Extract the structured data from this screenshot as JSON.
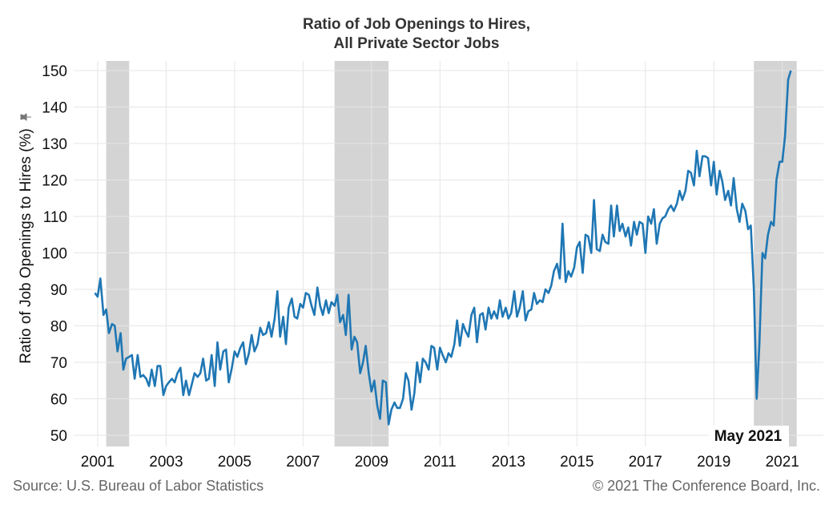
{
  "chart_data": {
    "type": "line",
    "title": "Ratio of Job Openings to Hires,",
    "subtitle": "All Private Sector Jobs",
    "ylabel": "Ratio of Job Openings to Hires (%)",
    "xlabel": "",
    "ylim": [
      50,
      150
    ],
    "yticks": [
      50,
      60,
      70,
      80,
      90,
      100,
      110,
      120,
      130,
      140,
      150
    ],
    "xlim": [
      2000.3,
      2022.2
    ],
    "xticks": [
      2001,
      2003,
      2005,
      2007,
      2009,
      2011,
      2013,
      2015,
      2017,
      2019,
      2021
    ],
    "grid": true,
    "line_color": "#1f77b4",
    "recessions": [
      [
        2001.25,
        2001.92
      ],
      [
        2007.92,
        2009.5
      ],
      [
        2020.17,
        2021.42
      ]
    ],
    "recession_color": "#d4d4d4",
    "annotation": "May 2021",
    "source": "Source: U.S. Bureau of Labor Statistics",
    "copyright": "© 2021 The Conference Board, Inc.",
    "series": [
      {
        "name": "",
        "points": [
          [
            2000.92,
            89
          ],
          [
            2001.0,
            88
          ],
          [
            2001.08,
            93
          ],
          [
            2001.17,
            83
          ],
          [
            2001.25,
            84.5
          ],
          [
            2001.33,
            78
          ],
          [
            2001.42,
            80.5
          ],
          [
            2001.5,
            80
          ],
          [
            2001.58,
            73
          ],
          [
            2001.67,
            78
          ],
          [
            2001.75,
            68
          ],
          [
            2001.83,
            71
          ],
          [
            2001.92,
            71.5
          ],
          [
            2002.0,
            72
          ],
          [
            2002.08,
            65.5
          ],
          [
            2002.17,
            72
          ],
          [
            2002.25,
            66
          ],
          [
            2002.33,
            66.5
          ],
          [
            2002.42,
            65.5
          ],
          [
            2002.5,
            63.5
          ],
          [
            2002.58,
            68
          ],
          [
            2002.67,
            63.5
          ],
          [
            2002.75,
            69
          ],
          [
            2002.83,
            69
          ],
          [
            2002.92,
            61
          ],
          [
            2003.0,
            63.5
          ],
          [
            2003.08,
            64.5
          ],
          [
            2003.17,
            65.5
          ],
          [
            2003.25,
            64.5
          ],
          [
            2003.33,
            67
          ],
          [
            2003.42,
            68.5
          ],
          [
            2003.5,
            61
          ],
          [
            2003.58,
            65
          ],
          [
            2003.67,
            61
          ],
          [
            2003.75,
            64
          ],
          [
            2003.83,
            67
          ],
          [
            2003.92,
            66
          ],
          [
            2004.0,
            67
          ],
          [
            2004.08,
            71
          ],
          [
            2004.17,
            65
          ],
          [
            2004.25,
            65.5
          ],
          [
            2004.33,
            72
          ],
          [
            2004.42,
            63.5
          ],
          [
            2004.5,
            75.5
          ],
          [
            2004.58,
            68
          ],
          [
            2004.67,
            73
          ],
          [
            2004.75,
            73.5
          ],
          [
            2004.83,
            64.5
          ],
          [
            2004.92,
            68.5
          ],
          [
            2005.0,
            73
          ],
          [
            2005.08,
            71.5
          ],
          [
            2005.17,
            74
          ],
          [
            2005.25,
            75.5
          ],
          [
            2005.33,
            69.5
          ],
          [
            2005.42,
            72.5
          ],
          [
            2005.5,
            77.5
          ],
          [
            2005.58,
            73
          ],
          [
            2005.67,
            75
          ],
          [
            2005.75,
            79.5
          ],
          [
            2005.83,
            77.5
          ],
          [
            2005.92,
            78
          ],
          [
            2006.0,
            81
          ],
          [
            2006.08,
            77
          ],
          [
            2006.17,
            82
          ],
          [
            2006.25,
            89.5
          ],
          [
            2006.33,
            77
          ],
          [
            2006.42,
            82.5
          ],
          [
            2006.5,
            75
          ],
          [
            2006.58,
            85
          ],
          [
            2006.67,
            87.5
          ],
          [
            2006.75,
            82.5
          ],
          [
            2006.83,
            82
          ],
          [
            2006.92,
            86
          ],
          [
            2007.0,
            85
          ],
          [
            2007.08,
            89
          ],
          [
            2007.17,
            88.5
          ],
          [
            2007.25,
            85.5
          ],
          [
            2007.33,
            83
          ],
          [
            2007.42,
            90.5
          ],
          [
            2007.5,
            85.5
          ],
          [
            2007.58,
            83
          ],
          [
            2007.67,
            87
          ],
          [
            2007.75,
            83.5
          ],
          [
            2007.83,
            86.5
          ],
          [
            2007.92,
            85.5
          ],
          [
            2008.0,
            88.5
          ],
          [
            2008.08,
            81
          ],
          [
            2008.17,
            83
          ],
          [
            2008.25,
            77.5
          ],
          [
            2008.33,
            88.5
          ],
          [
            2008.42,
            73.5
          ],
          [
            2008.5,
            77
          ],
          [
            2008.58,
            75.5
          ],
          [
            2008.67,
            67
          ],
          [
            2008.75,
            70
          ],
          [
            2008.83,
            74.5
          ],
          [
            2008.92,
            67
          ],
          [
            2009.0,
            62
          ],
          [
            2009.08,
            65
          ],
          [
            2009.17,
            58
          ],
          [
            2009.25,
            54.5
          ],
          [
            2009.33,
            65
          ],
          [
            2009.42,
            64.5
          ],
          [
            2009.5,
            53
          ],
          [
            2009.58,
            57
          ],
          [
            2009.67,
            59
          ],
          [
            2009.75,
            57.5
          ],
          [
            2009.83,
            57.5
          ],
          [
            2009.92,
            60
          ],
          [
            2010.0,
            67
          ],
          [
            2010.08,
            65
          ],
          [
            2010.17,
            57
          ],
          [
            2010.25,
            61.5
          ],
          [
            2010.33,
            70
          ],
          [
            2010.42,
            64.5
          ],
          [
            2010.5,
            71
          ],
          [
            2010.58,
            70
          ],
          [
            2010.67,
            68
          ],
          [
            2010.75,
            74.5
          ],
          [
            2010.83,
            74
          ],
          [
            2010.92,
            68
          ],
          [
            2011.0,
            74
          ],
          [
            2011.08,
            72
          ],
          [
            2011.17,
            70
          ],
          [
            2011.25,
            72.5
          ],
          [
            2011.33,
            71.5
          ],
          [
            2011.42,
            75
          ],
          [
            2011.5,
            81.5
          ],
          [
            2011.58,
            74.5
          ],
          [
            2011.67,
            80.5
          ],
          [
            2011.75,
            78.5
          ],
          [
            2011.83,
            77
          ],
          [
            2011.92,
            83
          ],
          [
            2012.0,
            85
          ],
          [
            2012.08,
            75.5
          ],
          [
            2012.17,
            83
          ],
          [
            2012.25,
            83.5
          ],
          [
            2012.33,
            79
          ],
          [
            2012.42,
            85
          ],
          [
            2012.5,
            82
          ],
          [
            2012.58,
            84
          ],
          [
            2012.67,
            82
          ],
          [
            2012.75,
            87
          ],
          [
            2012.83,
            82.5
          ],
          [
            2012.92,
            85
          ],
          [
            2013.0,
            82
          ],
          [
            2013.08,
            83.5
          ],
          [
            2013.17,
            89.5
          ],
          [
            2013.25,
            82.5
          ],
          [
            2013.33,
            85
          ],
          [
            2013.42,
            89.5
          ],
          [
            2013.5,
            81.5
          ],
          [
            2013.58,
            84
          ],
          [
            2013.67,
            84.5
          ],
          [
            2013.75,
            89
          ],
          [
            2013.83,
            86
          ],
          [
            2013.92,
            87
          ],
          [
            2014.0,
            86.5
          ],
          [
            2014.08,
            90
          ],
          [
            2014.17,
            89
          ],
          [
            2014.25,
            91
          ],
          [
            2014.33,
            95
          ],
          [
            2014.42,
            97
          ],
          [
            2014.5,
            93
          ],
          [
            2014.58,
            108
          ],
          [
            2014.67,
            92
          ],
          [
            2014.75,
            95
          ],
          [
            2014.83,
            93.5
          ],
          [
            2014.92,
            96
          ],
          [
            2015.0,
            101.5
          ],
          [
            2015.08,
            103
          ],
          [
            2015.17,
            94.5
          ],
          [
            2015.25,
            105
          ],
          [
            2015.33,
            104.5
          ],
          [
            2015.42,
            100
          ],
          [
            2015.5,
            114.5
          ],
          [
            2015.58,
            101
          ],
          [
            2015.67,
            100.5
          ],
          [
            2015.75,
            105
          ],
          [
            2015.83,
            103
          ],
          [
            2015.92,
            102.5
          ],
          [
            2016.0,
            113
          ],
          [
            2016.08,
            104.5
          ],
          [
            2016.17,
            113
          ],
          [
            2016.25,
            106
          ],
          [
            2016.33,
            108
          ],
          [
            2016.42,
            104.5
          ],
          [
            2016.5,
            107
          ],
          [
            2016.58,
            102
          ],
          [
            2016.67,
            108.5
          ],
          [
            2016.75,
            105
          ],
          [
            2016.83,
            108.5
          ],
          [
            2016.92,
            108
          ],
          [
            2017.0,
            100
          ],
          [
            2017.08,
            110
          ],
          [
            2017.17,
            108
          ],
          [
            2017.25,
            112
          ],
          [
            2017.33,
            102.5
          ],
          [
            2017.42,
            108
          ],
          [
            2017.5,
            109.5
          ],
          [
            2017.58,
            110
          ],
          [
            2017.67,
            112
          ],
          [
            2017.75,
            113
          ],
          [
            2017.83,
            111.5
          ],
          [
            2017.92,
            113.5
          ],
          [
            2018.0,
            117
          ],
          [
            2018.08,
            114.5
          ],
          [
            2018.17,
            117
          ],
          [
            2018.25,
            122.5
          ],
          [
            2018.33,
            122
          ],
          [
            2018.42,
            118.5
          ],
          [
            2018.5,
            128
          ],
          [
            2018.58,
            121
          ],
          [
            2018.67,
            126.5
          ],
          [
            2018.75,
            126.5
          ],
          [
            2018.83,
            126
          ],
          [
            2018.92,
            118.5
          ],
          [
            2019.0,
            125
          ],
          [
            2019.08,
            116
          ],
          [
            2019.17,
            122.5
          ],
          [
            2019.25,
            119.5
          ],
          [
            2019.33,
            114.5
          ],
          [
            2019.42,
            117
          ],
          [
            2019.5,
            113
          ],
          [
            2019.58,
            120.5
          ],
          [
            2019.67,
            112
          ],
          [
            2019.75,
            108.5
          ],
          [
            2019.83,
            113.5
          ],
          [
            2019.92,
            111.5
          ],
          [
            2020.0,
            106.5
          ],
          [
            2020.08,
            107.5
          ],
          [
            2020.17,
            90
          ],
          [
            2020.25,
            60
          ],
          [
            2020.33,
            75
          ],
          [
            2020.42,
            100
          ],
          [
            2020.5,
            98.5
          ],
          [
            2020.58,
            105
          ],
          [
            2020.67,
            108.5
          ],
          [
            2020.75,
            107.5
          ],
          [
            2020.83,
            120
          ],
          [
            2020.92,
            125
          ],
          [
            2021.0,
            125
          ],
          [
            2021.08,
            132
          ],
          [
            2021.17,
            147.5
          ],
          [
            2021.25,
            150
          ]
        ]
      }
    ]
  }
}
